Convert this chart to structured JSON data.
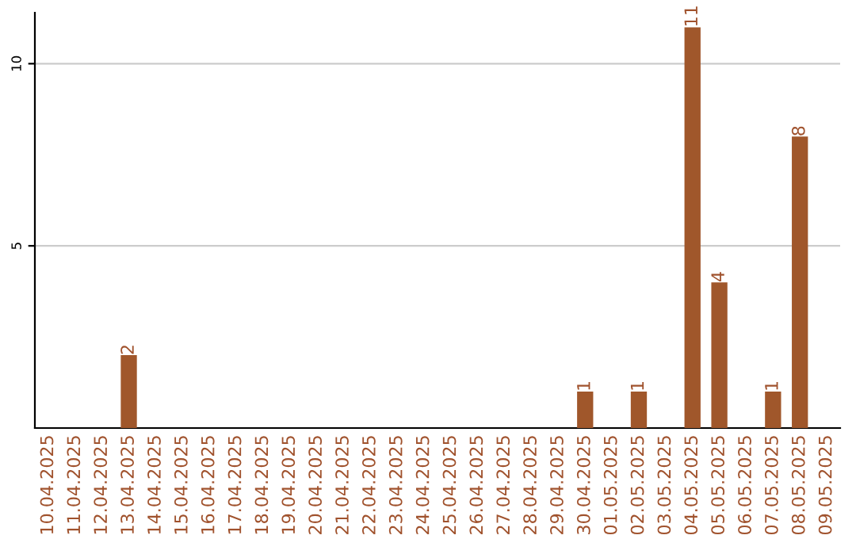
{
  "chart_data": {
    "type": "bar",
    "categories": [
      "10.04.2025",
      "11.04.2025",
      "12.04.2025",
      "13.04.2025",
      "14.04.2025",
      "15.04.2025",
      "16.04.2025",
      "17.04.2025",
      "18.04.2025",
      "19.04.2025",
      "20.04.2025",
      "21.04.2025",
      "22.04.2025",
      "23.04.2025",
      "24.04.2025",
      "25.04.2025",
      "26.04.2025",
      "27.04.2025",
      "28.04.2025",
      "29.04.2025",
      "30.04.2025",
      "01.05.2025",
      "02.05.2025",
      "03.05.2025",
      "04.05.2025",
      "05.05.2025",
      "06.05.2025",
      "07.05.2025",
      "08.05.2025",
      "09.05.2025"
    ],
    "values": [
      0,
      0,
      0,
      2,
      0,
      0,
      0,
      0,
      0,
      0,
      0,
      0,
      0,
      0,
      0,
      0,
      0,
      0,
      0,
      0,
      1,
      0,
      1,
      0,
      11,
      4,
      0,
      1,
      8,
      0
    ],
    "value_labels": [
      null,
      null,
      null,
      "2",
      null,
      null,
      null,
      null,
      null,
      null,
      null,
      null,
      null,
      null,
      null,
      null,
      null,
      null,
      null,
      null,
      "1",
      null,
      "1",
      null,
      "11",
      "4",
      null,
      "1",
      "8",
      null
    ],
    "color": "#a0572b",
    "ylim": [
      0,
      11.4
    ],
    "yticks": [
      5,
      10
    ],
    "grid": "y"
  }
}
